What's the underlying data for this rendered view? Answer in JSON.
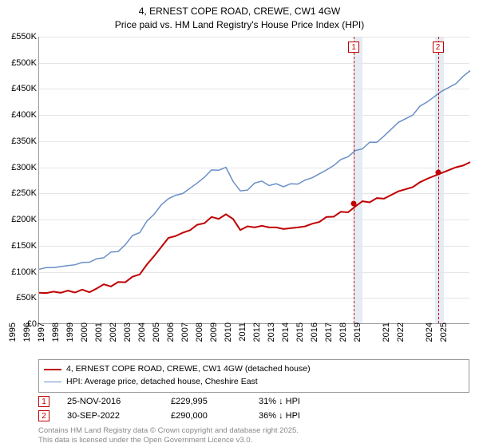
{
  "title_line1": "4, ERNEST COPE ROAD, CREWE, CW1 4GW",
  "title_line2": "Price paid vs. HM Land Registry's House Price Index (HPI)",
  "chart": {
    "type": "line",
    "background_color": "#ffffff",
    "grid_color": "#e5e5e5",
    "axis_color": "#999999",
    "x_years": [
      1995,
      1996,
      1997,
      1998,
      1999,
      2000,
      2001,
      2002,
      2003,
      2004,
      2005,
      2006,
      2007,
      2008,
      2009,
      2010,
      2011,
      2012,
      2013,
      2014,
      2015,
      2016,
      2017,
      2018,
      2019,
      2021,
      2022,
      2024,
      2025
    ],
    "ylim": [
      0,
      550
    ],
    "ytick_step": 50,
    "ytick_labels": [
      "£0",
      "£50K",
      "£100K",
      "£150K",
      "£200K",
      "£250K",
      "£300K",
      "£350K",
      "£400K",
      "£450K",
      "£500K",
      "£550K"
    ],
    "highlight_bands": [
      {
        "x_start_year": 2016.9,
        "x_end_year": 2017.5,
        "color": "#dbe4f0"
      },
      {
        "x_start_year": 2022.55,
        "x_end_year": 2023.15,
        "color": "#dbe4f0"
      }
    ],
    "series": [
      {
        "name": "property",
        "color": "#c00000",
        "line_width": 2,
        "y": [
          60,
          62,
          64,
          66,
          68,
          72,
          80,
          95,
          130,
          165,
          175,
          190,
          205,
          210,
          180,
          185,
          185,
          182,
          185,
          192,
          205,
          215,
          225,
          233,
          240,
          262,
          278,
          300,
          310
        ]
      },
      {
        "name": "hpi",
        "color": "#6a8fc7",
        "line_width": 1.5,
        "y": [
          105,
          108,
          112,
          118,
          125,
          138,
          152,
          175,
          210,
          240,
          250,
          270,
          295,
          300,
          255,
          270,
          265,
          263,
          268,
          280,
          295,
          315,
          332,
          348,
          360,
          400,
          425,
          460,
          485
        ]
      }
    ],
    "markers": [
      {
        "id": "1",
        "x_year": 2016.9,
        "y": 229.995
      },
      {
        "id": "2",
        "x_year": 2022.75,
        "y": 290.0
      }
    ]
  },
  "legend": {
    "items": [
      {
        "label": "4, ERNEST COPE ROAD, CREWE, CW1 4GW (detached house)",
        "color": "#c00000",
        "width": 2
      },
      {
        "label": "HPI: Average price, detached house, Cheshire East",
        "color": "#6a8fc7",
        "width": 1.5
      }
    ]
  },
  "transactions": [
    {
      "id": "1",
      "date": "25-NOV-2016",
      "price": "£229,995",
      "hpi_delta": "31% ↓ HPI"
    },
    {
      "id": "2",
      "date": "30-SEP-2022",
      "price": "£290,000",
      "hpi_delta": "36% ↓ HPI"
    }
  ],
  "footer_line1": "Contains HM Land Registry data © Crown copyright and database right 2025.",
  "footer_line2": "This data is licensed under the Open Government Licence v3.0."
}
